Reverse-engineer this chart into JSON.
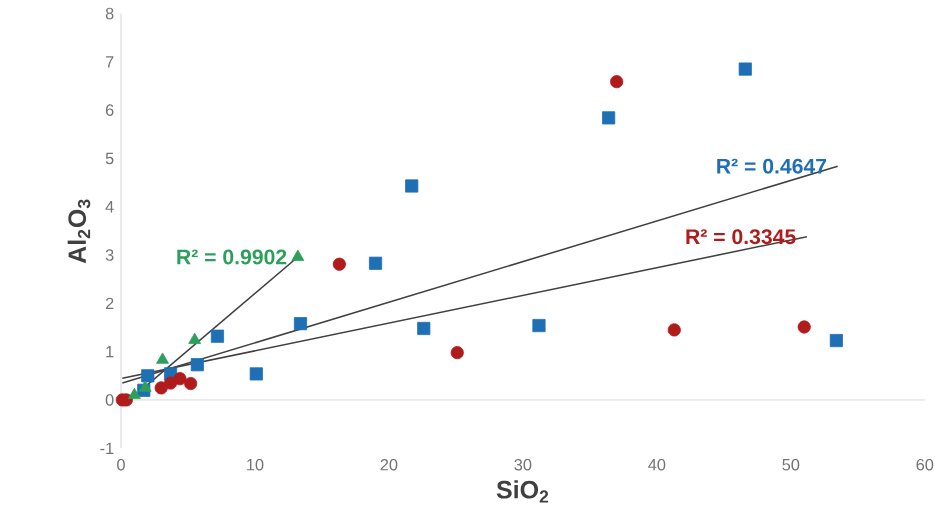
{
  "chart_data": {
    "type": "scatter",
    "xlabel": "SiO$_{2}$",
    "ylabel": "Al$_{2}$O$_{3}$",
    "xlim": [
      0,
      60
    ],
    "ylim": [
      -1,
      8
    ],
    "xticks": [
      0,
      10,
      20,
      30,
      40,
      50,
      60
    ],
    "yticks": [
      -1,
      0,
      1,
      2,
      3,
      4,
      5,
      6,
      7,
      8
    ],
    "series": [
      {
        "marker": "square",
        "color": "#1f6fb4",
        "x": [
          1.7,
          2.0,
          3.7,
          5.7,
          7.2,
          10.1,
          13.4,
          19.0,
          21.7,
          22.6,
          31.2,
          36.4,
          46.6,
          53.4
        ],
        "values": [
          0.2,
          0.5,
          0.54,
          0.73,
          1.32,
          0.54,
          1.58,
          2.83,
          4.43,
          1.48,
          1.54,
          5.84,
          6.85,
          1.23
        ]
      },
      {
        "marker": "circle",
        "color": "#b01c1c",
        "x": [
          0.1,
          0.4,
          3.0,
          3.7,
          4.4,
          5.2,
          16.3,
          25.1,
          37.0,
          41.3,
          51.0
        ],
        "values": [
          0,
          0,
          0.25,
          0.35,
          0.44,
          0.34,
          2.81,
          0.98,
          6.59,
          1.45,
          1.51
        ]
      },
      {
        "marker": "triangle",
        "color": "#2ca05a",
        "x": [
          1.0,
          1.8,
          3.1,
          5.5,
          13.2
        ],
        "values": [
          0.1,
          0.25,
          0.83,
          1.24,
          2.96
        ]
      },
      {
        "type": "line",
        "marker": "none",
        "color": "#404040",
        "x": [
          0.1,
          53.5
        ],
        "values": [
          0.35,
          4.84
        ]
      },
      {
        "type": "line",
        "marker": "none",
        "color": "#404040",
        "x": [
          0.1,
          51.2
        ],
        "values": [
          0.45,
          3.38
        ]
      },
      {
        "type": "line",
        "marker": "none",
        "color": "#404040",
        "x": [
          0.3,
          13.2
        ],
        "values": [
          -0.08,
          2.96
        ]
      }
    ],
    "annotations": [
      "R² = 0.4647",
      "R² = 0.3345",
      "R² = 0.9902"
    ]
  }
}
